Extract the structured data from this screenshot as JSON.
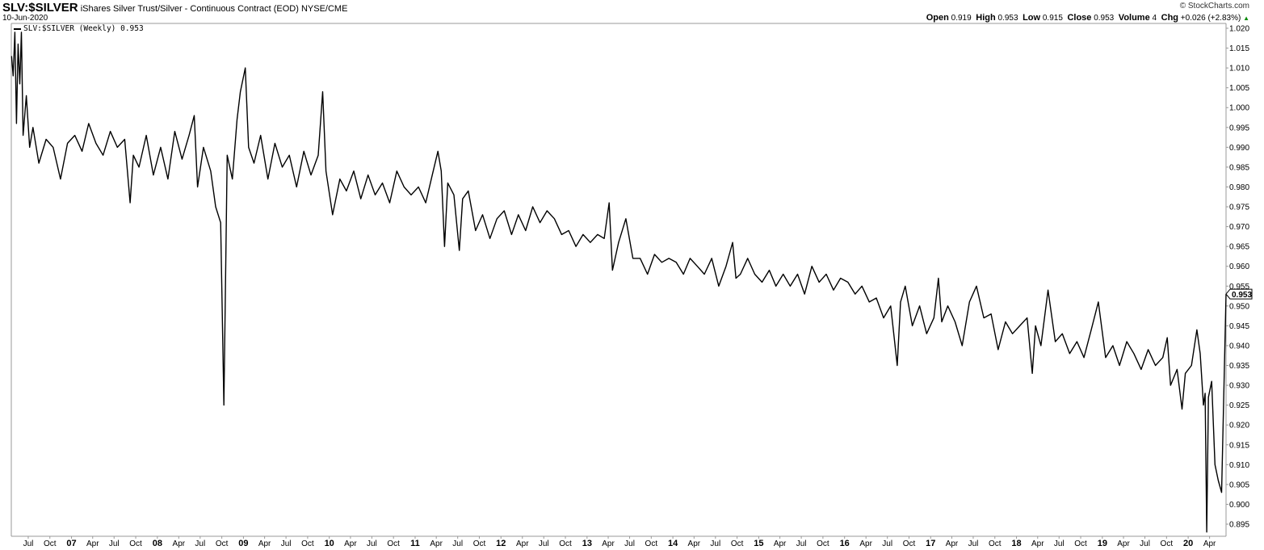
{
  "header": {
    "symbol": "SLV:$SILVER",
    "description": "iShares Silver Trust/Silver - Continuous Contract (EOD)",
    "exchange": "NYSE/CME",
    "date": "10-Jun-2020",
    "copyright": "© StockCharts.com",
    "ohlc": {
      "open_label": "Open",
      "open": "0.919",
      "high_label": "High",
      "high": "0.953",
      "low_label": "Low",
      "low": "0.915",
      "close_label": "Close",
      "close": "0.953",
      "volume_label": "Volume",
      "volume": "4",
      "chg_label": "Chg",
      "chg": "+0.026 (+2.83%)",
      "chg_icon": "triangle-up-icon"
    }
  },
  "legend": {
    "label": "SLV:$SILVER (Weekly) 0.953"
  },
  "colors": {
    "line": "#000000",
    "axis": "#999999",
    "up": "#0a8a0a"
  },
  "chart_data": {
    "type": "line",
    "title": "SLV:$SILVER",
    "last_value": "0.953",
    "ylim": [
      0.8925,
      1.0215
    ],
    "xlim": [
      "2006-04-20",
      "2020-06-10"
    ],
    "y_ticks": [
      "0.895",
      "0.900",
      "0.905",
      "0.910",
      "0.915",
      "0.920",
      "0.925",
      "0.930",
      "0.935",
      "0.940",
      "0.945",
      "0.950",
      "0.955",
      "0.960",
      "0.965",
      "0.970",
      "0.975",
      "0.980",
      "0.985",
      "0.990",
      "0.995",
      "1.000",
      "1.005",
      "1.010",
      "1.015",
      "1.020"
    ],
    "x_ticks": [
      [
        "2006-07-01",
        "Jul"
      ],
      [
        "2006-10-01",
        "Oct"
      ],
      [
        "2007-01-01",
        "07"
      ],
      [
        "2007-04-01",
        "Apr"
      ],
      [
        "2007-07-01",
        "Jul"
      ],
      [
        "2007-10-01",
        "Oct"
      ],
      [
        "2008-01-01",
        "08"
      ],
      [
        "2008-04-01",
        "Apr"
      ],
      [
        "2008-07-01",
        "Jul"
      ],
      [
        "2008-10-01",
        "Oct"
      ],
      [
        "2009-01-01",
        "09"
      ],
      [
        "2009-04-01",
        "Apr"
      ],
      [
        "2009-07-01",
        "Jul"
      ],
      [
        "2009-10-01",
        "Oct"
      ],
      [
        "2010-01-01",
        "10"
      ],
      [
        "2010-04-01",
        "Apr"
      ],
      [
        "2010-07-01",
        "Jul"
      ],
      [
        "2010-10-01",
        "Oct"
      ],
      [
        "2011-01-01",
        "11"
      ],
      [
        "2011-04-01",
        "Apr"
      ],
      [
        "2011-07-01",
        "Jul"
      ],
      [
        "2011-10-01",
        "Oct"
      ],
      [
        "2012-01-01",
        "12"
      ],
      [
        "2012-04-01",
        "Apr"
      ],
      [
        "2012-07-01",
        "Jul"
      ],
      [
        "2012-10-01",
        "Oct"
      ],
      [
        "2013-01-01",
        "13"
      ],
      [
        "2013-04-01",
        "Apr"
      ],
      [
        "2013-07-01",
        "Jul"
      ],
      [
        "2013-10-01",
        "Oct"
      ],
      [
        "2014-01-01",
        "14"
      ],
      [
        "2014-04-01",
        "Apr"
      ],
      [
        "2014-07-01",
        "Jul"
      ],
      [
        "2014-10-01",
        "Oct"
      ],
      [
        "2015-01-01",
        "15"
      ],
      [
        "2015-04-01",
        "Apr"
      ],
      [
        "2015-07-01",
        "Jul"
      ],
      [
        "2015-10-01",
        "Oct"
      ],
      [
        "2016-01-01",
        "16"
      ],
      [
        "2016-04-01",
        "Apr"
      ],
      [
        "2016-07-01",
        "Jul"
      ],
      [
        "2016-10-01",
        "Oct"
      ],
      [
        "2017-01-01",
        "17"
      ],
      [
        "2017-04-01",
        "Apr"
      ],
      [
        "2017-07-01",
        "Jul"
      ],
      [
        "2017-10-01",
        "Oct"
      ],
      [
        "2018-01-01",
        "18"
      ],
      [
        "2018-04-01",
        "Apr"
      ],
      [
        "2018-07-01",
        "Jul"
      ],
      [
        "2018-10-01",
        "Oct"
      ],
      [
        "2019-01-01",
        "19"
      ],
      [
        "2019-04-01",
        "Apr"
      ],
      [
        "2019-07-01",
        "Jul"
      ],
      [
        "2019-10-01",
        "Oct"
      ],
      [
        "2020-01-01",
        "20"
      ],
      [
        "2020-04-01",
        "Apr"
      ]
    ],
    "grid": false,
    "series": [
      {
        "points": [
          [
            "2006-04-21",
            1.013
          ],
          [
            "2006-04-28",
            1.008
          ],
          [
            "2006-05-05",
            1.019
          ],
          [
            "2006-05-12",
            0.996
          ],
          [
            "2006-05-19",
            1.016
          ],
          [
            "2006-05-26",
            1.006
          ],
          [
            "2006-06-02",
            1.019
          ],
          [
            "2006-06-09",
            0.993
          ],
          [
            "2006-06-23",
            1.003
          ],
          [
            "2006-07-07",
            0.99
          ],
          [
            "2006-07-21",
            0.995
          ],
          [
            "2006-08-15",
            0.986
          ],
          [
            "2006-09-15",
            0.992
          ],
          [
            "2006-10-15",
            0.99
          ],
          [
            "2006-11-15",
            0.982
          ],
          [
            "2006-12-15",
            0.991
          ],
          [
            "2007-01-15",
            0.993
          ],
          [
            "2007-02-15",
            0.989
          ],
          [
            "2007-03-15",
            0.996
          ],
          [
            "2007-04-15",
            0.991
          ],
          [
            "2007-05-15",
            0.988
          ],
          [
            "2007-06-15",
            0.994
          ],
          [
            "2007-07-15",
            0.99
          ],
          [
            "2007-08-15",
            0.992
          ],
          [
            "2007-09-07",
            0.976
          ],
          [
            "2007-09-21",
            0.988
          ],
          [
            "2007-10-15",
            0.985
          ],
          [
            "2007-11-15",
            0.993
          ],
          [
            "2007-12-15",
            0.983
          ],
          [
            "2008-01-15",
            0.99
          ],
          [
            "2008-02-15",
            0.982
          ],
          [
            "2008-03-15",
            0.994
          ],
          [
            "2008-04-15",
            0.987
          ],
          [
            "2008-05-15",
            0.993
          ],
          [
            "2008-06-06",
            0.998
          ],
          [
            "2008-06-20",
            0.98
          ],
          [
            "2008-07-15",
            0.99
          ],
          [
            "2008-08-15",
            0.984
          ],
          [
            "2008-09-05",
            0.975
          ],
          [
            "2008-09-26",
            0.971
          ],
          [
            "2008-10-10",
            0.925
          ],
          [
            "2008-10-24",
            0.988
          ],
          [
            "2008-11-15",
            0.982
          ],
          [
            "2008-12-05",
            0.997
          ],
          [
            "2008-12-19",
            1.004
          ],
          [
            "2009-01-09",
            1.01
          ],
          [
            "2009-01-23",
            0.99
          ],
          [
            "2009-02-15",
            0.986
          ],
          [
            "2009-03-15",
            0.993
          ],
          [
            "2009-04-15",
            0.982
          ],
          [
            "2009-05-15",
            0.991
          ],
          [
            "2009-06-15",
            0.985
          ],
          [
            "2009-07-15",
            0.988
          ],
          [
            "2009-08-15",
            0.98
          ],
          [
            "2009-09-15",
            0.989
          ],
          [
            "2009-10-15",
            0.983
          ],
          [
            "2009-11-15",
            0.988
          ],
          [
            "2009-12-04",
            1.004
          ],
          [
            "2009-12-18",
            0.984
          ],
          [
            "2010-01-15",
            0.973
          ],
          [
            "2010-02-15",
            0.982
          ],
          [
            "2010-03-15",
            0.979
          ],
          [
            "2010-04-15",
            0.984
          ],
          [
            "2010-05-15",
            0.977
          ],
          [
            "2010-06-15",
            0.983
          ],
          [
            "2010-07-15",
            0.978
          ],
          [
            "2010-08-15",
            0.981
          ],
          [
            "2010-09-15",
            0.976
          ],
          [
            "2010-10-15",
            0.984
          ],
          [
            "2010-11-15",
            0.98
          ],
          [
            "2010-12-15",
            0.978
          ],
          [
            "2011-01-15",
            0.98
          ],
          [
            "2011-02-15",
            0.976
          ],
          [
            "2011-03-15",
            0.983
          ],
          [
            "2011-04-08",
            0.989
          ],
          [
            "2011-04-22",
            0.984
          ],
          [
            "2011-05-06",
            0.965
          ],
          [
            "2011-05-20",
            0.981
          ],
          [
            "2011-06-15",
            0.978
          ],
          [
            "2011-07-08",
            0.964
          ],
          [
            "2011-07-22",
            0.977
          ],
          [
            "2011-08-15",
            0.979
          ],
          [
            "2011-09-15",
            0.969
          ],
          [
            "2011-10-15",
            0.973
          ],
          [
            "2011-11-15",
            0.967
          ],
          [
            "2011-12-15",
            0.972
          ],
          [
            "2012-01-15",
            0.974
          ],
          [
            "2012-02-15",
            0.968
          ],
          [
            "2012-03-15",
            0.973
          ],
          [
            "2012-04-15",
            0.969
          ],
          [
            "2012-05-15",
            0.975
          ],
          [
            "2012-06-15",
            0.971
          ],
          [
            "2012-07-15",
            0.974
          ],
          [
            "2012-08-15",
            0.972
          ],
          [
            "2012-09-15",
            0.968
          ],
          [
            "2012-10-15",
            0.969
          ],
          [
            "2012-11-15",
            0.965
          ],
          [
            "2012-12-15",
            0.968
          ],
          [
            "2013-01-15",
            0.966
          ],
          [
            "2013-02-15",
            0.968
          ],
          [
            "2013-03-15",
            0.967
          ],
          [
            "2013-04-05",
            0.976
          ],
          [
            "2013-04-19",
            0.959
          ],
          [
            "2013-05-15",
            0.966
          ],
          [
            "2013-06-15",
            0.972
          ],
          [
            "2013-07-15",
            0.962
          ],
          [
            "2013-08-15",
            0.962
          ],
          [
            "2013-09-15",
            0.958
          ],
          [
            "2013-10-15",
            0.963
          ],
          [
            "2013-11-15",
            0.961
          ],
          [
            "2013-12-15",
            0.962
          ],
          [
            "2014-01-15",
            0.961
          ],
          [
            "2014-02-15",
            0.958
          ],
          [
            "2014-03-15",
            0.962
          ],
          [
            "2014-04-15",
            0.96
          ],
          [
            "2014-05-15",
            0.958
          ],
          [
            "2014-06-15",
            0.962
          ],
          [
            "2014-07-15",
            0.955
          ],
          [
            "2014-08-15",
            0.96
          ],
          [
            "2014-09-12",
            0.966
          ],
          [
            "2014-09-26",
            0.957
          ],
          [
            "2014-10-15",
            0.958
          ],
          [
            "2014-11-15",
            0.962
          ],
          [
            "2014-12-15",
            0.958
          ],
          [
            "2015-01-15",
            0.956
          ],
          [
            "2015-02-15",
            0.959
          ],
          [
            "2015-03-15",
            0.955
          ],
          [
            "2015-04-15",
            0.958
          ],
          [
            "2015-05-15",
            0.955
          ],
          [
            "2015-06-15",
            0.958
          ],
          [
            "2015-07-15",
            0.953
          ],
          [
            "2015-08-15",
            0.96
          ],
          [
            "2015-09-15",
            0.956
          ],
          [
            "2015-10-15",
            0.958
          ],
          [
            "2015-11-15",
            0.954
          ],
          [
            "2015-12-15",
            0.957
          ],
          [
            "2016-01-15",
            0.956
          ],
          [
            "2016-02-15",
            0.953
          ],
          [
            "2016-03-15",
            0.955
          ],
          [
            "2016-04-15",
            0.951
          ],
          [
            "2016-05-15",
            0.952
          ],
          [
            "2016-06-15",
            0.947
          ],
          [
            "2016-07-15",
            0.95
          ],
          [
            "2016-08-12",
            0.935
          ],
          [
            "2016-08-26",
            0.951
          ],
          [
            "2016-09-15",
            0.955
          ],
          [
            "2016-10-15",
            0.945
          ],
          [
            "2016-11-15",
            0.95
          ],
          [
            "2016-12-15",
            0.943
          ],
          [
            "2017-01-15",
            0.947
          ],
          [
            "2017-02-03",
            0.957
          ],
          [
            "2017-02-17",
            0.946
          ],
          [
            "2017-03-15",
            0.95
          ],
          [
            "2017-04-15",
            0.946
          ],
          [
            "2017-05-15",
            0.94
          ],
          [
            "2017-06-15",
            0.951
          ],
          [
            "2017-07-15",
            0.955
          ],
          [
            "2017-08-15",
            0.947
          ],
          [
            "2017-09-15",
            0.948
          ],
          [
            "2017-10-15",
            0.939
          ],
          [
            "2017-11-15",
            0.946
          ],
          [
            "2017-12-15",
            0.943
          ],
          [
            "2018-01-15",
            0.945
          ],
          [
            "2018-02-15",
            0.947
          ],
          [
            "2018-03-09",
            0.933
          ],
          [
            "2018-03-23",
            0.945
          ],
          [
            "2018-04-15",
            0.94
          ],
          [
            "2018-05-15",
            0.954
          ],
          [
            "2018-06-15",
            0.941
          ],
          [
            "2018-07-15",
            0.943
          ],
          [
            "2018-08-15",
            0.938
          ],
          [
            "2018-09-15",
            0.941
          ],
          [
            "2018-10-15",
            0.937
          ],
          [
            "2018-11-15",
            0.944
          ],
          [
            "2018-12-15",
            0.951
          ],
          [
            "2019-01-15",
            0.937
          ],
          [
            "2019-02-15",
            0.94
          ],
          [
            "2019-03-15",
            0.935
          ],
          [
            "2019-04-15",
            0.941
          ],
          [
            "2019-05-15",
            0.938
          ],
          [
            "2019-06-15",
            0.934
          ],
          [
            "2019-07-15",
            0.939
          ],
          [
            "2019-08-15",
            0.935
          ],
          [
            "2019-09-15",
            0.937
          ],
          [
            "2019-10-04",
            0.942
          ],
          [
            "2019-10-18",
            0.93
          ],
          [
            "2019-11-15",
            0.934
          ],
          [
            "2019-12-06",
            0.924
          ],
          [
            "2019-12-20",
            0.933
          ],
          [
            "2020-01-15",
            0.935
          ],
          [
            "2020-02-07",
            0.944
          ],
          [
            "2020-02-21",
            0.938
          ],
          [
            "2020-03-06",
            0.925
          ],
          [
            "2020-03-13",
            0.928
          ],
          [
            "2020-03-20",
            0.893
          ],
          [
            "2020-03-27",
            0.927
          ],
          [
            "2020-04-10",
            0.931
          ],
          [
            "2020-04-24",
            0.91
          ],
          [
            "2020-05-08",
            0.906
          ],
          [
            "2020-05-22",
            0.903
          ],
          [
            "2020-06-10",
            0.953
          ]
        ]
      }
    ]
  }
}
